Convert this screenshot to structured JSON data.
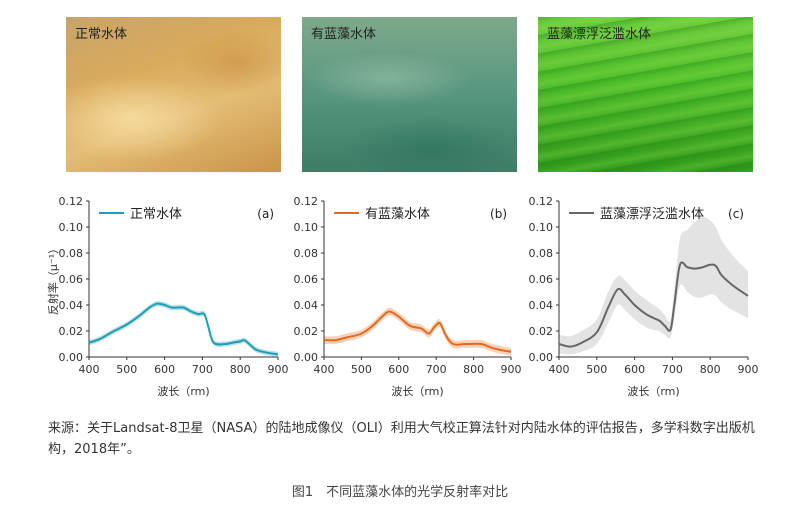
{
  "photos": [
    {
      "label": "正常水体"
    },
    {
      "label": "有蓝藻水体"
    },
    {
      "label": "蓝藻漂浮泛滥水体"
    }
  ],
  "chart_data": [
    {
      "type": "line",
      "panel": "(a)",
      "legend": "正常水体",
      "color": "#1a9fb4",
      "band_color": "#b9dfe6",
      "xlabel": "波长（rm)",
      "ylabel": "反射率（μ⁻¹）",
      "xlim": [
        400,
        900
      ],
      "ylim": [
        0,
        0.12
      ],
      "xticks": [
        400,
        500,
        600,
        700,
        800,
        900
      ],
      "yticks": [
        "0.00",
        "0.02",
        "0.04",
        "0.06",
        "0.08",
        "0.10",
        "0.12"
      ],
      "x": [
        400,
        430,
        460,
        500,
        530,
        560,
        580,
        600,
        620,
        650,
        670,
        690,
        705,
        715,
        730,
        760,
        780,
        800,
        810,
        820,
        840,
        860,
        900
      ],
      "y": [
        0.011,
        0.014,
        0.019,
        0.025,
        0.031,
        0.038,
        0.041,
        0.04,
        0.038,
        0.038,
        0.035,
        0.033,
        0.033,
        0.024,
        0.011,
        0.01,
        0.011,
        0.012,
        0.013,
        0.011,
        0.006,
        0.004,
        0.002
      ],
      "band": 0.002
    },
    {
      "type": "line",
      "panel": "(b)",
      "legend": "有蓝藻水体",
      "color": "#e56a1a",
      "band_color": "#f6d2bb",
      "xlabel": "波长（rm)",
      "xlim": [
        400,
        900
      ],
      "ylim": [
        0,
        0.12
      ],
      "xticks": [
        400,
        500,
        600,
        700,
        800,
        900
      ],
      "yticks": [
        "0.00",
        "0.02",
        "0.04",
        "0.06",
        "0.08",
        "0.10",
        "0.12"
      ],
      "x": [
        400,
        430,
        460,
        500,
        530,
        555,
        575,
        600,
        630,
        660,
        680,
        695,
        710,
        725,
        745,
        780,
        820,
        850,
        880,
        900
      ],
      "y": [
        0.013,
        0.013,
        0.015,
        0.018,
        0.024,
        0.031,
        0.035,
        0.031,
        0.024,
        0.022,
        0.018,
        0.023,
        0.026,
        0.017,
        0.01,
        0.01,
        0.01,
        0.007,
        0.005,
        0.004
      ],
      "band": 0.003
    },
    {
      "type": "line",
      "panel": "(c)",
      "legend": "蓝藻漂浮泛滥水体",
      "color": "#666666",
      "band_color": "#e3e3e3",
      "xlabel": "波长（rm)",
      "xlim": [
        400,
        900
      ],
      "ylim": [
        0,
        0.12
      ],
      "xticks": [
        400,
        500,
        600,
        700,
        800,
        900
      ],
      "yticks": [
        "0.00",
        "0.02",
        "0.04",
        "0.06",
        "0.08",
        "0.10",
        "0.12"
      ],
      "x": [
        400,
        430,
        460,
        500,
        530,
        555,
        575,
        600,
        630,
        650,
        665,
        680,
        695,
        705,
        720,
        740,
        760,
        780,
        800,
        815,
        830,
        860,
        900
      ],
      "y": [
        0.01,
        0.008,
        0.011,
        0.019,
        0.038,
        0.052,
        0.048,
        0.04,
        0.033,
        0.03,
        0.028,
        0.024,
        0.021,
        0.04,
        0.071,
        0.069,
        0.068,
        0.069,
        0.071,
        0.07,
        0.063,
        0.055,
        0.047
      ],
      "band_lo": [
        0.003,
        0.002,
        0.004,
        0.01,
        0.026,
        0.04,
        0.036,
        0.029,
        0.023,
        0.021,
        0.02,
        0.017,
        0.015,
        0.03,
        0.055,
        0.05,
        0.046,
        0.046,
        0.048,
        0.047,
        0.042,
        0.036,
        0.03
      ],
      "band_hi": [
        0.017,
        0.016,
        0.02,
        0.029,
        0.05,
        0.062,
        0.059,
        0.051,
        0.044,
        0.04,
        0.037,
        0.032,
        0.028,
        0.052,
        0.091,
        0.098,
        0.104,
        0.108,
        0.105,
        0.1,
        0.09,
        0.078,
        0.066
      ]
    }
  ],
  "source_text": "来源：关于Landsat-8卫星（NASA）的陆地成像仪（OLI）利用大气校正算法针对内陆水体的评估报告，多学科数字出版机构，2018年”。",
  "figure_caption": "图1　不同蓝藻水体的光学反射率对比"
}
